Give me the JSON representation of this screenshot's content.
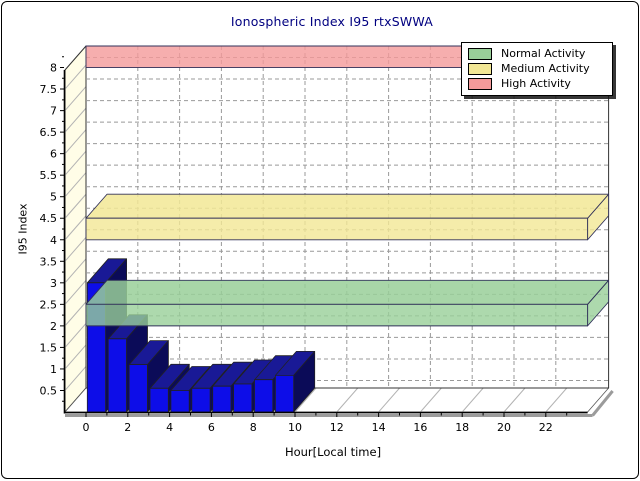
{
  "frame": {
    "bg": "#FFFFFF",
    "border_color": "#000000"
  },
  "chart_data": {
    "type": "bar",
    "projection": "3d",
    "title": "Ionospheric Index I95 rtxSWWA",
    "title_color": "#000080",
    "xlabel": "Hour[Local time]",
    "ylabel": "I95 Index",
    "x": [
      0,
      1,
      2,
      3,
      4,
      5,
      6,
      7,
      8,
      9
    ],
    "values": [
      3.0,
      1.7,
      1.1,
      0.55,
      0.5,
      0.55,
      0.6,
      0.65,
      0.75,
      0.85
    ],
    "xlim": [
      0,
      24
    ],
    "ylim": [
      0,
      8.5
    ],
    "x_tick_labels": [
      "0",
      "2",
      "4",
      "6",
      "8",
      "10",
      "12",
      "14",
      "16",
      "18",
      "20",
      "22"
    ],
    "y_tick_labels": [
      "0.5",
      "1",
      "1.5",
      "2",
      "2.5",
      "3",
      "3.5",
      "4",
      "4.5",
      "5",
      "5.5",
      "6",
      "6.5",
      "7",
      "7.5",
      "8"
    ],
    "grid": "dashed",
    "wall_color": "#FFFDE7",
    "bar_colors": {
      "front": "#0D0DE8",
      "top": "#191996",
      "side": "#0B0B58"
    },
    "bands": [
      {
        "label": "Normal Activity",
        "from": 2.0,
        "to": 2.5,
        "color": "#99CF99"
      },
      {
        "label": "Medium Activity",
        "from": 4.0,
        "to": 4.5,
        "color": "#F2E795"
      },
      {
        "label": "High Activity",
        "from": 8.0,
        "to": 8.5,
        "color": "#F49A9A"
      }
    ],
    "legend": {
      "position": "top-right",
      "entries": [
        "Normal Activity",
        "Medium Activity",
        "High Activity"
      ]
    }
  }
}
